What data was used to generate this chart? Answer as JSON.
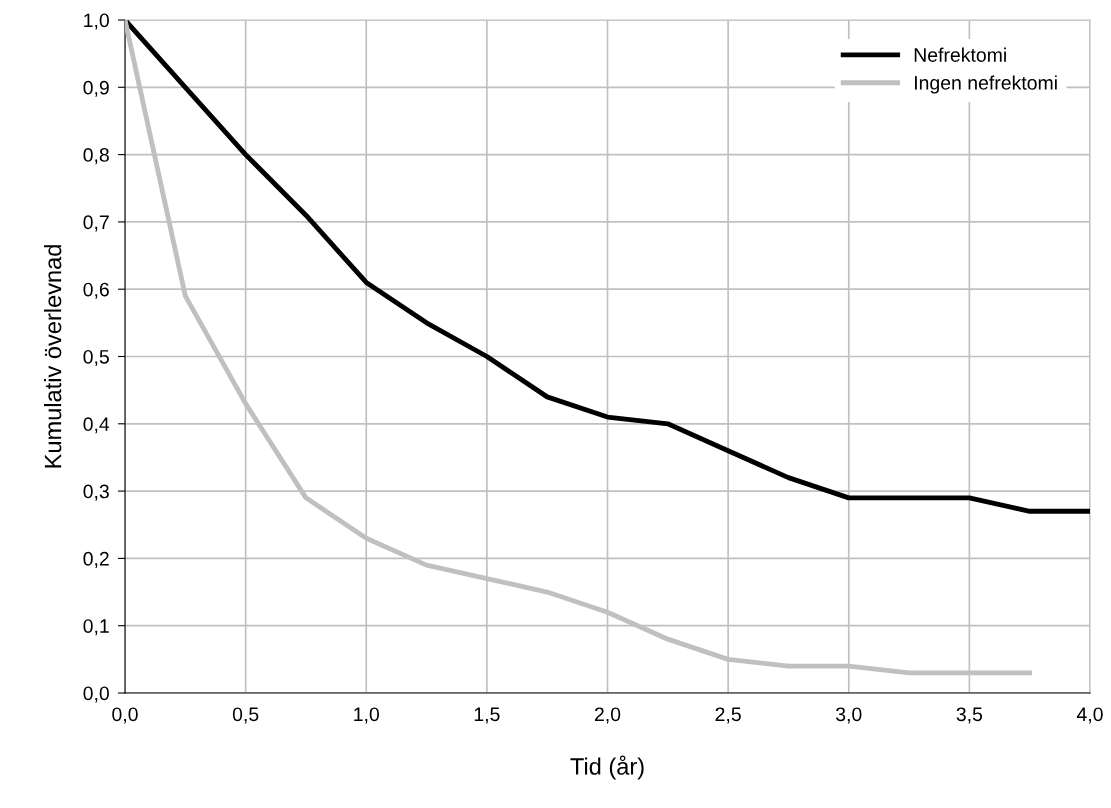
{
  "chart_data": {
    "type": "line",
    "xlabel": "Tid (år)",
    "ylabel": "Kumulativ överlevnad",
    "series": [
      {
        "name": "Nefrektomi",
        "color": "#000000",
        "x": [
          0,
          0.25,
          0.5,
          0.75,
          1.0,
          1.25,
          1.5,
          1.75,
          2.0,
          2.25,
          2.5,
          2.75,
          3.0,
          3.25,
          3.5,
          3.75,
          4.0
        ],
        "values": [
          1.0,
          0.9,
          0.8,
          0.71,
          0.61,
          0.55,
          0.5,
          0.44,
          0.41,
          0.4,
          0.36,
          0.32,
          0.29,
          0.29,
          0.29,
          0.27,
          0.27
        ]
      },
      {
        "name": "Ingen nefrektomi",
        "color": "#c0c0c0",
        "x": [
          0,
          0.25,
          0.5,
          0.75,
          1.0,
          1.25,
          1.5,
          1.75,
          2.0,
          2.25,
          2.5,
          2.75,
          3.0,
          3.25,
          3.5,
          3.75
        ],
        "values": [
          1.0,
          0.59,
          0.43,
          0.29,
          0.23,
          0.19,
          0.17,
          0.15,
          0.12,
          0.08,
          0.05,
          0.04,
          0.04,
          0.03,
          0.03,
          0.03
        ]
      }
    ],
    "xlim": [
      0,
      4
    ],
    "xticks": [
      {
        "value": 0,
        "label": "0,0"
      },
      {
        "value": 0.5,
        "label": "0,5"
      },
      {
        "value": 1,
        "label": "1,0"
      },
      {
        "value": 1.5,
        "label": "1,5"
      },
      {
        "value": 2,
        "label": "2,0"
      },
      {
        "value": 2.5,
        "label": "2,5"
      },
      {
        "value": 3,
        "label": "3,0"
      },
      {
        "value": 3.5,
        "label": "3,5"
      },
      {
        "value": 4,
        "label": "4,0"
      }
    ],
    "ylim": [
      0,
      1
    ],
    "yticks": [
      {
        "value": 0,
        "label": "0,0"
      },
      {
        "value": 0.1,
        "label": "0,1"
      },
      {
        "value": 0.2,
        "label": "0,2"
      },
      {
        "value": 0.3,
        "label": "0,3"
      },
      {
        "value": 0.4,
        "label": "0,4"
      },
      {
        "value": 0.5,
        "label": "0,5"
      },
      {
        "value": 0.6,
        "label": "0,6"
      },
      {
        "value": 0.7,
        "label": "0,7"
      },
      {
        "value": 0.8,
        "label": "0,8"
      },
      {
        "value": 0.9,
        "label": "0,9"
      },
      {
        "value": 1,
        "label": "1,0"
      }
    ],
    "grid": true,
    "legend": "top right",
    "marker": "none",
    "line_style": "solid"
  }
}
